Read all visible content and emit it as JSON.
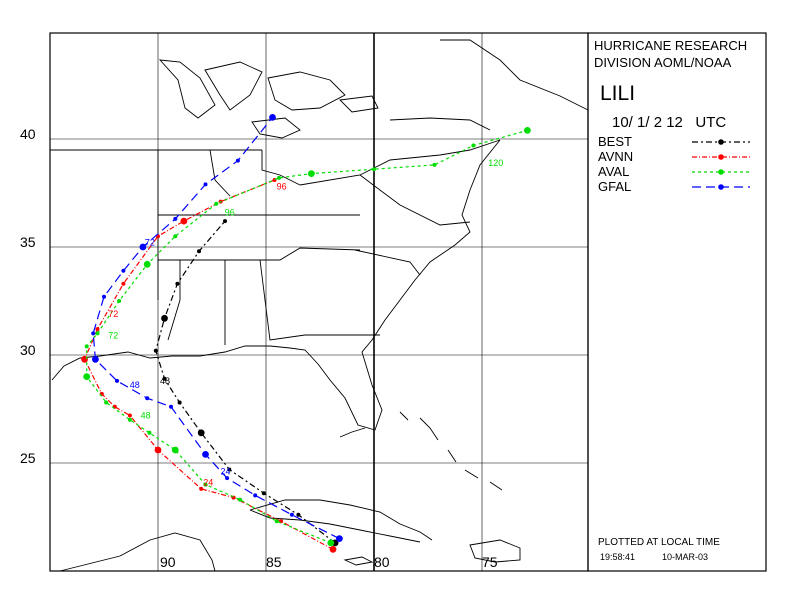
{
  "header": {
    "org_line1": "HURRICANE RESEARCH",
    "org_line2": "DIVISION AOML/NOAA",
    "storm_name": "LILI",
    "datetime": "10/ 1/ 2 12   UTC"
  },
  "legend": [
    {
      "label": "BEST",
      "color": "#000000",
      "dash": "6,3,2,3"
    },
    {
      "label": "AVNN",
      "color": "#ff0000",
      "dash": "5,2,1,2"
    },
    {
      "label": "AVAL",
      "color": "#00dd00",
      "dash": "3,3"
    },
    {
      "label": "GFAL",
      "color": "#0000ff",
      "dash": "9,5"
    }
  ],
  "footer": {
    "note": "PLOTTED AT LOCAL TIME",
    "time": "19:58:41",
    "date": "10-MAR-03"
  },
  "axes": {
    "lat_labels": [
      "40",
      "35",
      "30",
      "25"
    ],
    "lon_labels": [
      "90",
      "85",
      "80",
      "75"
    ]
  },
  "tracks": {
    "BEST": [
      [
        -81.8,
        21.3
      ],
      [
        -83.5,
        22.6
      ],
      [
        -85.1,
        23.6
      ],
      [
        -86.7,
        24.7
      ],
      [
        -88.0,
        26.4
      ],
      [
        -89.0,
        27.8
      ],
      [
        -89.7,
        28.9
      ],
      [
        -90.1,
        30.2
      ],
      [
        -89.7,
        31.7
      ],
      [
        -89.1,
        33.3
      ],
      [
        -88.1,
        34.8
      ],
      [
        -86.9,
        36.2
      ]
    ],
    "AVNN": [
      [
        -81.9,
        21.0
      ],
      [
        -84.3,
        22.3
      ],
      [
        -86.5,
        23.4
      ],
      [
        -88.0,
        23.8
      ],
      [
        -90.0,
        25.6
      ],
      [
        -91.3,
        27.2
      ],
      [
        -92.0,
        27.6
      ],
      [
        -92.6,
        28.2
      ],
      [
        -93.4,
        29.8
      ],
      [
        -92.8,
        31.2
      ],
      [
        -91.6,
        33.3
      ],
      [
        -90.0,
        35.5
      ],
      [
        -88.8,
        36.2
      ],
      [
        -87.1,
        37.1
      ],
      [
        -84.6,
        38.1
      ]
    ],
    "AVAL": [
      [
        -82.0,
        21.3
      ],
      [
        -84.5,
        22.3
      ],
      [
        -86.2,
        23.3
      ],
      [
        -87.8,
        24.0
      ],
      [
        -89.2,
        25.6
      ],
      [
        -90.4,
        26.4
      ],
      [
        -91.3,
        27.0
      ],
      [
        -92.4,
        27.8
      ],
      [
        -93.3,
        29.0
      ],
      [
        -93.3,
        30.4
      ],
      [
        -92.8,
        31.0
      ],
      [
        -91.8,
        32.5
      ],
      [
        -90.5,
        34.2
      ],
      [
        -89.2,
        35.5
      ],
      [
        -87.3,
        37.0
      ],
      [
        -84.4,
        38.2
      ],
      [
        -82.9,
        38.4
      ],
      [
        -80.0,
        38.6
      ],
      [
        -77.2,
        38.8
      ],
      [
        -75.4,
        39.7
      ],
      [
        -72.9,
        40.4
      ]
    ],
    "GFAL": [
      [
        -81.6,
        21.5
      ],
      [
        -83.8,
        22.6
      ],
      [
        -85.5,
        23.5
      ],
      [
        -86.8,
        24.3
      ],
      [
        -87.8,
        25.4
      ],
      [
        -89.4,
        27.6
      ],
      [
        -90.5,
        28.0
      ],
      [
        -91.9,
        28.8
      ],
      [
        -92.9,
        29.8
      ],
      [
        -93.0,
        31.0
      ],
      [
        -92.5,
        32.7
      ],
      [
        -91.6,
        33.9
      ],
      [
        -90.7,
        35.0
      ],
      [
        -89.2,
        36.3
      ],
      [
        -87.8,
        37.9
      ],
      [
        -86.3,
        39.0
      ],
      [
        -84.7,
        41.0
      ]
    ]
  },
  "track_labels": [
    {
      "text": "96",
      "lon": -84.6,
      "lat": 37.8,
      "track": "AVNN"
    },
    {
      "text": "96",
      "lon": -87.0,
      "lat": 36.6,
      "track": "AVAL"
    },
    {
      "text": "120",
      "lon": -74.8,
      "lat": 38.9,
      "track": "AVAL"
    },
    {
      "text": "72",
      "lon": -92.4,
      "lat": 31.9,
      "track": "AVNN"
    },
    {
      "text": "72",
      "lon": -92.4,
      "lat": 30.9,
      "track": "AVAL"
    },
    {
      "text": "72",
      "lon": -90.7,
      "lat": 35.2,
      "track": "GFAL"
    },
    {
      "text": "48",
      "lon": -91.4,
      "lat": 28.6,
      "track": "GFAL"
    },
    {
      "text": "48",
      "lon": -90.0,
      "lat": 28.8,
      "track": "BEST"
    },
    {
      "text": "48",
      "lon": -90.9,
      "lat": 27.2,
      "track": "AVAL"
    },
    {
      "text": "24",
      "lon": -87.2,
      "lat": 24.6,
      "track": "GFAL"
    },
    {
      "text": "24",
      "lon": -88.0,
      "lat": 24.1,
      "track": "AVNN"
    }
  ]
}
